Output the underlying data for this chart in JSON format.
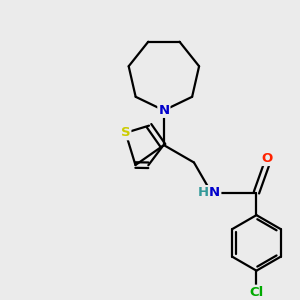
{
  "background_color": "#ebebeb",
  "bond_color": "#000000",
  "bond_width": 1.6,
  "atom_colors": {
    "N": "#0000cc",
    "S": "#cccc00",
    "O": "#ff2200",
    "Cl": "#00aa00",
    "C": "#000000",
    "H": "#339999"
  },
  "font_size": 9.5,
  "figsize": [
    3.0,
    3.0
  ],
  "dpi": 100
}
